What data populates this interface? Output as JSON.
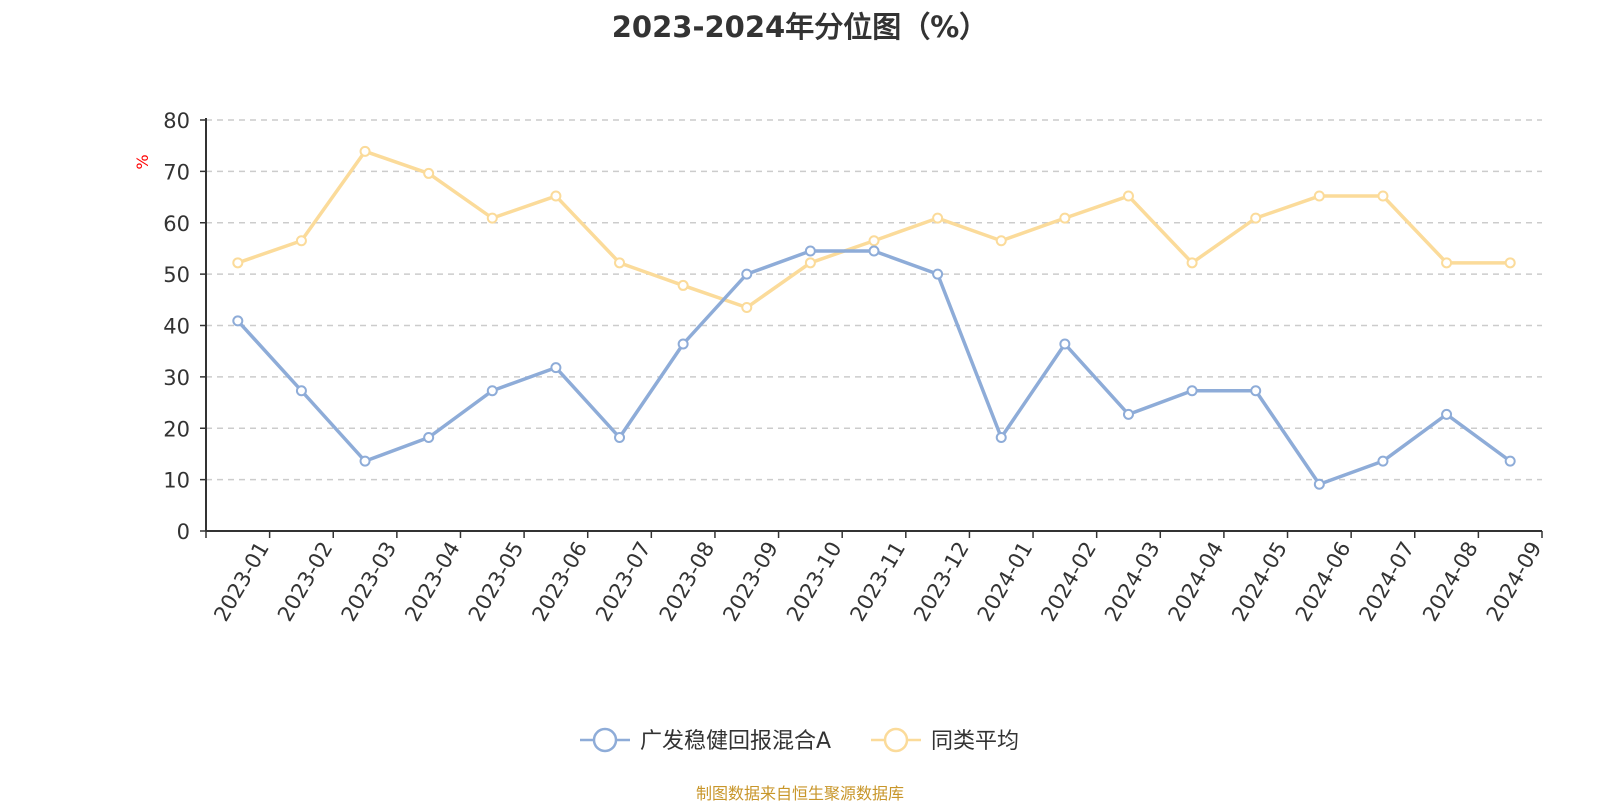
{
  "chart_data": {
    "type": "line",
    "title": "2023-2024年分位图（%）",
    "ylabel": "%",
    "xlabel": "",
    "ylim": [
      0,
      80
    ],
    "yticks": [
      0,
      10,
      20,
      30,
      40,
      50,
      60,
      70,
      80
    ],
    "grid": true,
    "legend_position": "bottom",
    "categories": [
      "2023-01",
      "2023-02",
      "2023-03",
      "2023-04",
      "2023-05",
      "2023-06",
      "2023-07",
      "2023-08",
      "2023-09",
      "2023-10",
      "2023-11",
      "2023-12",
      "2024-01",
      "2024-02",
      "2024-03",
      "2024-04",
      "2024-05",
      "2024-06",
      "2024-07",
      "2024-08",
      "2024-09"
    ],
    "series": [
      {
        "name": "广发稳健回报混合A",
        "color": "#8eacd8",
        "values": [
          40.9,
          27.3,
          13.6,
          18.2,
          27.3,
          31.8,
          18.2,
          36.4,
          50.0,
          54.5,
          54.5,
          50.0,
          18.2,
          36.4,
          22.7,
          27.3,
          27.3,
          9.1,
          13.6,
          22.7,
          13.6
        ]
      },
      {
        "name": "同类平均",
        "color": "#fbdb9a",
        "values": [
          52.2,
          56.5,
          73.9,
          69.6,
          60.9,
          65.2,
          52.2,
          47.8,
          43.5,
          52.2,
          56.5,
          60.9,
          56.5,
          60.9,
          65.2,
          52.2,
          60.9,
          65.2,
          65.2,
          52.2,
          52.2
        ]
      }
    ]
  },
  "source_note": "制图数据来自恒生聚源数据库",
  "colors": {
    "axis": "#333333",
    "grid": "#cccccc",
    "ylabel": "#ff0000",
    "source_note": "#c8962a"
  }
}
